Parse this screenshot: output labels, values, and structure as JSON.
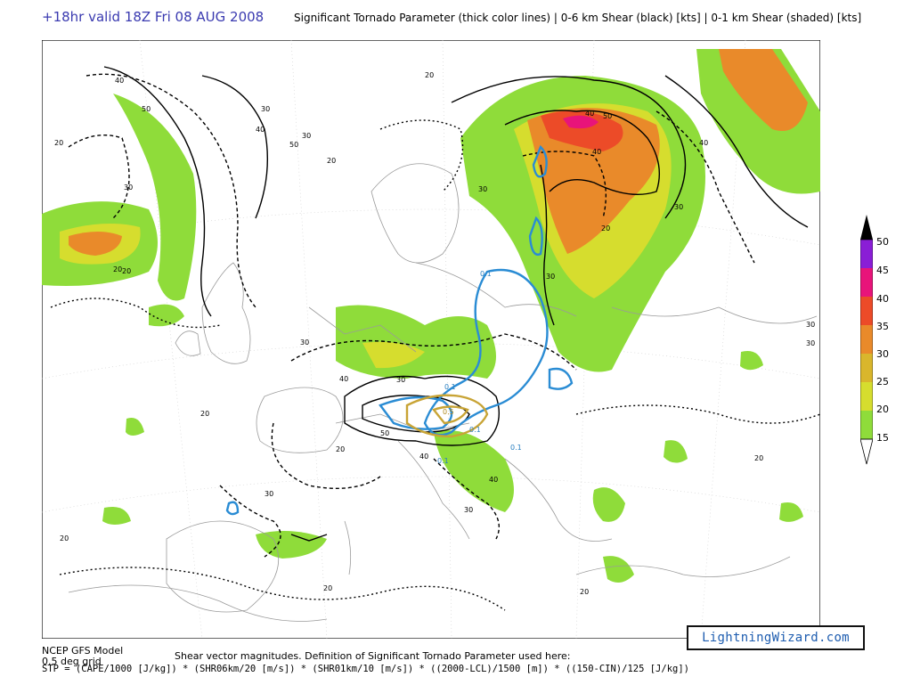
{
  "header": {
    "valid_time": "+18hr valid 18Z Fri 08 AUG 2008",
    "description": "Significant Tornado Parameter (thick color lines) | 0-6 km Shear (black) [kts] | 0-1 km Shear (shaded) [kts]"
  },
  "footer": {
    "model": "NCEP GFS Model",
    "grid": "0.5 deg grid",
    "note": "Shear vector magnitudes. Definition of Significant Tornado Parameter used here:",
    "formula": "STP = (CAPE/1000 [J/kg]) * (SHR06km/20 [m/s]) * (SHR01km/10 [m/s]) * ((2000-LCL)/1500 [m]) * ((150-CIN)/125 [J/kg])"
  },
  "badge": "LightningWizard.com",
  "legend": {
    "levels": [
      {
        "label": "50",
        "color": "#000000"
      },
      {
        "label": "45",
        "color": "#8a1ed6"
      },
      {
        "label": "40",
        "color": "#e8147a"
      },
      {
        "label": "35",
        "color": "#ec4b28"
      },
      {
        "label": "30",
        "color": "#e98a2a"
      },
      {
        "label": "25",
        "color": "#d9b62c"
      },
      {
        "label": "20",
        "color": "#d6dd2e"
      },
      {
        "label": "15",
        "color": "#8fdc3a"
      }
    ]
  },
  "contour_labels": {
    "shear06": [
      "40",
      "50",
      "20",
      "30",
      "20",
      "30",
      "40",
      "50",
      "40",
      "20",
      "40",
      "30",
      "30",
      "20",
      "50",
      "40",
      "30",
      "20",
      "20",
      "30",
      "40",
      "30",
      "30",
      "50",
      "40",
      "20",
      "20",
      "20",
      "20",
      "30",
      "20",
      "30",
      "40",
      "30",
      "30",
      "20"
    ],
    "stp": [
      "0.1",
      "0.1",
      "0.1",
      "0.1",
      "0.1",
      "0.5"
    ]
  }
}
